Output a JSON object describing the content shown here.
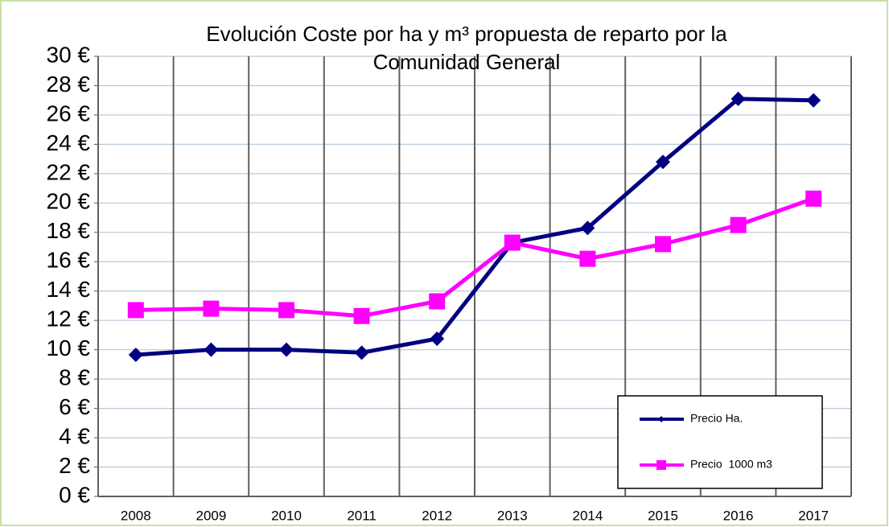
{
  "chart_data": {
    "type": "line",
    "title": [
      "Evolución  Coste por ha y m³ propuesta de reparto por la",
      "Comunidad General"
    ],
    "categories": [
      "2008",
      "2009",
      "2010",
      "2011",
      "2012",
      "2013",
      "2014",
      "2015",
      "2016",
      "2017"
    ],
    "series": [
      {
        "name": "Precio Ha.",
        "color": "#000080",
        "marker": "diamond",
        "values": [
          9.65,
          10.0,
          10.0,
          9.8,
          10.75,
          17.3,
          18.3,
          22.8,
          27.1,
          27.0
        ]
      },
      {
        "name": "Precio  1000 m3",
        "color": "#ff00ff",
        "marker": "square",
        "values": [
          12.7,
          12.8,
          12.7,
          12.3,
          13.3,
          17.3,
          16.2,
          17.2,
          18.5,
          20.3
        ]
      }
    ],
    "ylim": [
      0,
      30
    ],
    "yticks": [
      {
        "value": 0,
        "label": "0 €"
      },
      {
        "value": 2,
        "label": "2 €"
      },
      {
        "value": 4,
        "label": "4 €"
      },
      {
        "value": 6,
        "label": "6 €"
      },
      {
        "value": 8,
        "label": "8 €"
      },
      {
        "value": 10,
        "label": "10 €"
      },
      {
        "value": 12,
        "label": "12 €"
      },
      {
        "value": 14,
        "label": "14 €"
      },
      {
        "value": 16,
        "label": "16 €"
      },
      {
        "value": 18,
        "label": "18 €"
      },
      {
        "value": 20,
        "label": "20 €"
      },
      {
        "value": 22,
        "label": "22 €"
      },
      {
        "value": 24,
        "label": "24 €"
      },
      {
        "value": 26,
        "label": "26 €"
      },
      {
        "value": 28,
        "label": "28 €"
      },
      {
        "value": 30,
        "label": "30 €"
      }
    ],
    "grid": true,
    "legend": "lower right"
  }
}
